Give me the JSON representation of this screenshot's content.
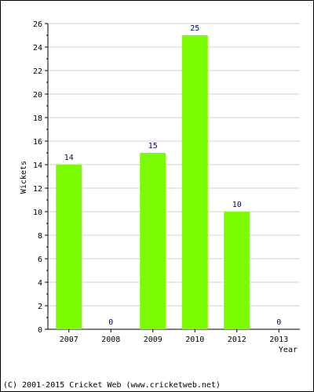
{
  "chart_data": {
    "type": "bar",
    "categories": [
      "2007",
      "2008",
      "2009",
      "2010",
      "2012",
      "2013"
    ],
    "values": [
      14,
      0,
      15,
      25,
      10,
      0
    ],
    "title": "",
    "xlabel": "Year",
    "ylabel": "Wickets",
    "ylim": [
      0,
      26
    ],
    "yticks": [
      0,
      2,
      4,
      6,
      8,
      10,
      12,
      14,
      16,
      18,
      20,
      22,
      24,
      26
    ],
    "grid": true,
    "legend": "none",
    "bar_color": "#7cfc00",
    "value_label_color": "#000080"
  },
  "footer": {
    "text": "(C) 2001-2015 Cricket Web (www.cricketweb.net)"
  }
}
